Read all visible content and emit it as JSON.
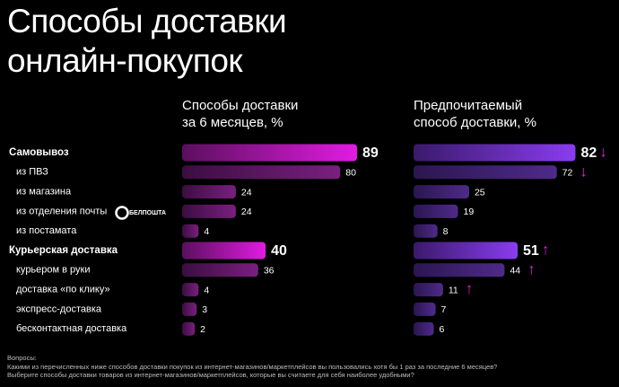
{
  "chart_data": {
    "type": "bar",
    "title": "Способы доставки\nонлайн-покупок",
    "categories": [
      "Самовывоз",
      "из ПВЗ",
      "из магазина",
      "из отделения почты",
      "из постамата",
      "Курьерская доставка",
      "курьером в руки",
      "доставка «по клику»",
      "экспресс-доставка",
      "бесконтактная доставка"
    ],
    "highlight": [
      true,
      false,
      false,
      false,
      false,
      true,
      false,
      false,
      false,
      false
    ],
    "series": [
      {
        "name": "Способы доставки\nза 6 месяцев, %",
        "color": "#e21be2",
        "muted_color": "#7a1f80",
        "values": [
          89,
          80,
          24,
          24,
          4,
          40,
          36,
          4,
          3,
          2
        ]
      },
      {
        "name": "Предпочитаемый\nспособ доставки, %",
        "color": "#8a3cf0",
        "muted_color": "#4f2a8a",
        "values": [
          82,
          72,
          25,
          19,
          8,
          51,
          44,
          11,
          7,
          6
        ],
        "markers": [
          "↓",
          "↓",
          null,
          null,
          null,
          "↑",
          "↑",
          "↑",
          null,
          null
        ],
        "marker_color": "#e21be2"
      }
    ],
    "logo": "БЕЛПОШТА",
    "footnote": "Вопросы:\nКакими из перечисленных ниже способов доставки покупок из интернет-магазинов/маркетплейсов вы пользовались хотя бы 1 раз за последние 6 месяцев?\nВыберите способы доставки товаров из интернет-магазинов/маркетплейсов, которые вы считаете для себя наиболее удобными?"
  }
}
